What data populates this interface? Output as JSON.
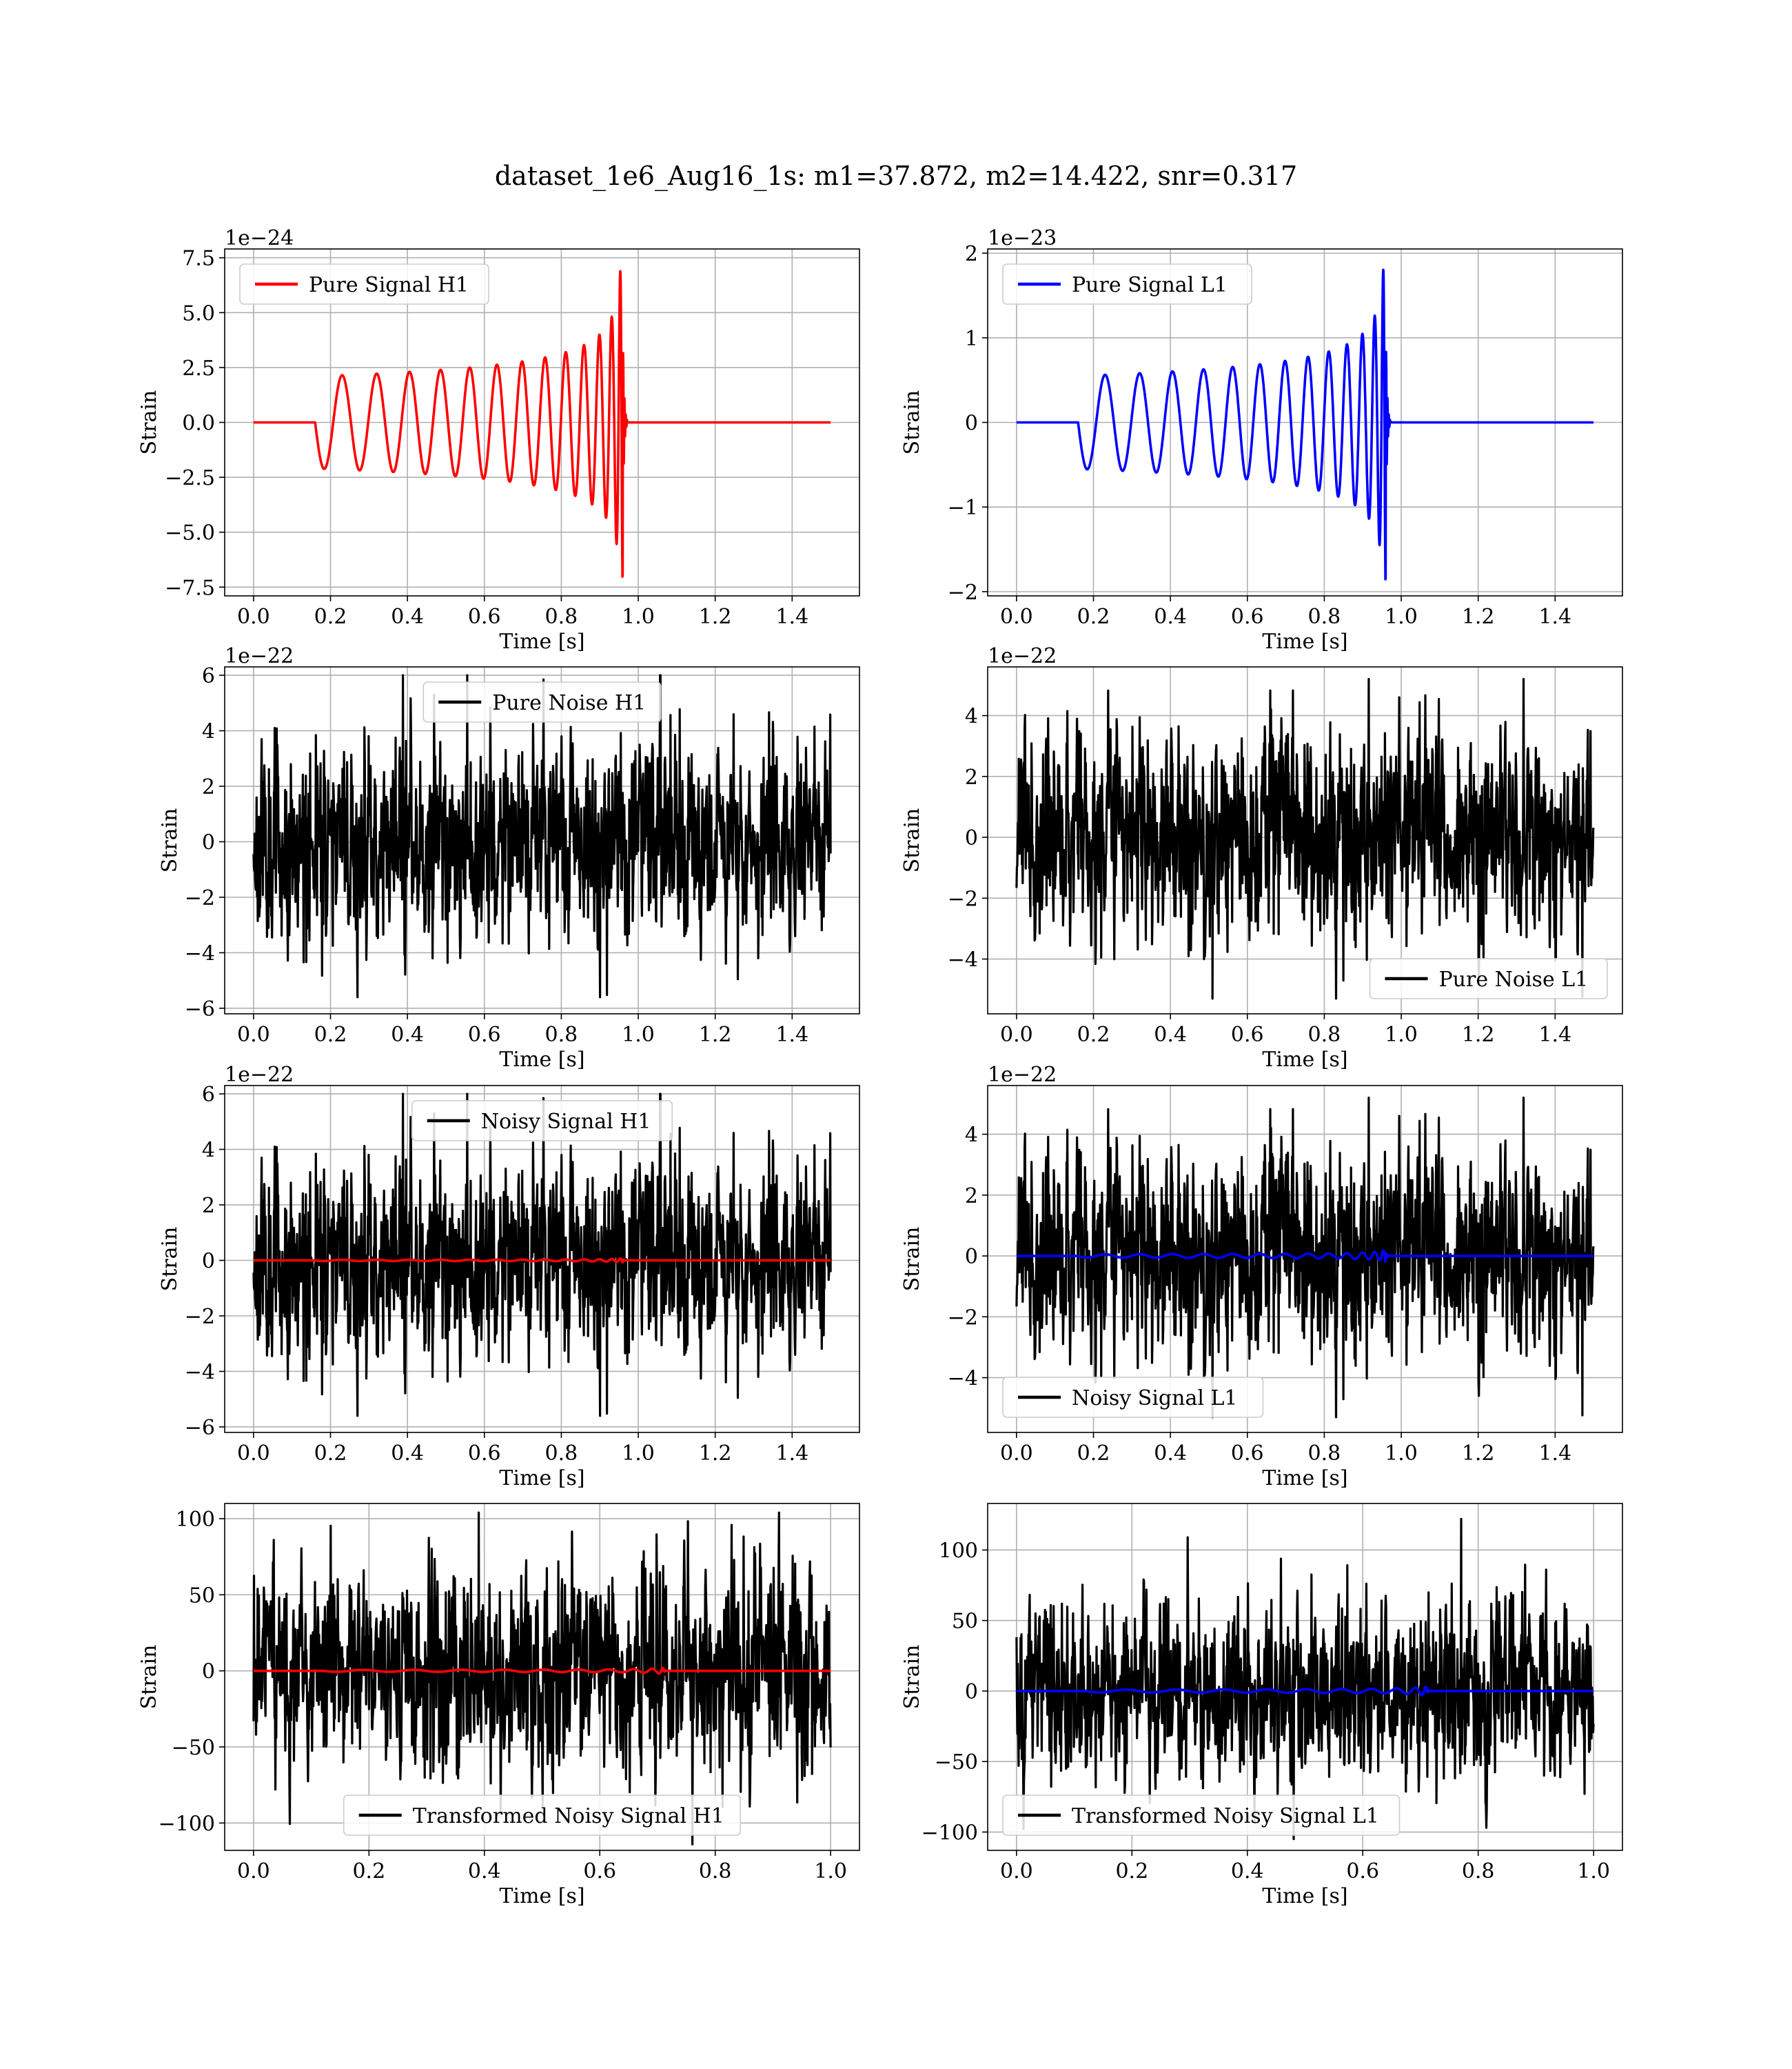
{
  "figure": {
    "title": "dataset_1e6_Aug16_1s: m1=37.872, m2=14.422, snr=0.317"
  },
  "colors": {
    "h1": "#ff0000",
    "l1": "#0000ff",
    "noise": "#000000",
    "grid": "#b0b0b0"
  },
  "chart_data": [
    {
      "id": "pure-signal-h1",
      "type": "line",
      "xlabel": "Time [s]",
      "ylabel": "Strain",
      "offset_label": "1e−24",
      "xlim": [
        -0.075,
        1.575
      ],
      "ylim": [
        -7.9,
        7.9
      ],
      "xticks": [
        0.0,
        0.2,
        0.4,
        0.6,
        0.8,
        1.0,
        1.2,
        1.4
      ],
      "xtick_labels": [
        "0.0",
        "0.2",
        "0.4",
        "0.6",
        "0.8",
        "1.0",
        "1.2",
        "1.4"
      ],
      "yticks": [
        -7.5,
        -5.0,
        -2.5,
        0.0,
        2.5,
        5.0,
        7.5
      ],
      "ytick_labels": [
        "−7.5",
        "−5.0",
        "−2.5",
        "0.0",
        "2.5",
        "5.0",
        "7.5"
      ],
      "grid": true,
      "legend": "top-left",
      "series": [
        {
          "name": "Pure Signal H1",
          "color": "#ff0000",
          "kind": "chirp",
          "t0": 0.16,
          "tc": 0.96,
          "t_end": 1.5,
          "amp_start": 2.1,
          "amp_peak": 7.2
        }
      ]
    },
    {
      "id": "pure-signal-l1",
      "type": "line",
      "xlabel": "Time [s]",
      "ylabel": "Strain",
      "offset_label": "1e−23",
      "xlim": [
        -0.075,
        1.575
      ],
      "ylim": [
        -2.05,
        2.05
      ],
      "xticks": [
        0.0,
        0.2,
        0.4,
        0.6,
        0.8,
        1.0,
        1.2,
        1.4
      ],
      "xtick_labels": [
        "0.0",
        "0.2",
        "0.4",
        "0.6",
        "0.8",
        "1.0",
        "1.2",
        "1.4"
      ],
      "yticks": [
        -2,
        -1,
        0,
        1,
        2
      ],
      "ytick_labels": [
        "−2",
        "−1",
        "0",
        "1",
        "2"
      ],
      "grid": true,
      "legend": "top-left",
      "series": [
        {
          "name": "Pure Signal L1",
          "color": "#0000ff",
          "kind": "chirp",
          "t0": 0.16,
          "tc": 0.96,
          "t_end": 1.5,
          "amp_start": 0.55,
          "amp_peak": 1.9
        }
      ]
    },
    {
      "id": "pure-noise-h1",
      "type": "line",
      "xlabel": "Time [s]",
      "ylabel": "Strain",
      "offset_label": "1e−22",
      "xlim": [
        -0.075,
        1.575
      ],
      "ylim": [
        -6.2,
        6.3
      ],
      "xticks": [
        0.0,
        0.2,
        0.4,
        0.6,
        0.8,
        1.0,
        1.2,
        1.4
      ],
      "xtick_labels": [
        "0.0",
        "0.2",
        "0.4",
        "0.6",
        "0.8",
        "1.0",
        "1.2",
        "1.4"
      ],
      "yticks": [
        -6,
        -4,
        -2,
        0,
        2,
        4,
        6
      ],
      "ytick_labels": [
        "−6",
        "−4",
        "−2",
        "0",
        "2",
        "4",
        "6"
      ],
      "grid": true,
      "legend": "top-center",
      "series": [
        {
          "name": "Pure Noise H1",
          "color": "#000000",
          "kind": "noise",
          "seed": 11,
          "t_start": 0.0,
          "t_end": 1.5,
          "n": 1500,
          "sigma": 1.6,
          "max": 6.0,
          "min": -5.6
        }
      ]
    },
    {
      "id": "pure-noise-l1",
      "type": "line",
      "xlabel": "Time [s]",
      "ylabel": "Strain",
      "offset_label": "1e−22",
      "xlim": [
        -0.075,
        1.575
      ],
      "ylim": [
        -5.8,
        5.6
      ],
      "xticks": [
        0.0,
        0.2,
        0.4,
        0.6,
        0.8,
        1.0,
        1.2,
        1.4
      ],
      "xtick_labels": [
        "0.0",
        "0.2",
        "0.4",
        "0.6",
        "0.8",
        "1.0",
        "1.2",
        "1.4"
      ],
      "yticks": [
        -4,
        -2,
        0,
        2,
        4
      ],
      "ytick_labels": [
        "−4",
        "−2",
        "0",
        "2",
        "4"
      ],
      "grid": true,
      "legend": "bottom-right",
      "series": [
        {
          "name": "Pure Noise L1",
          "color": "#000000",
          "kind": "noise",
          "seed": 23,
          "t_start": 0.0,
          "t_end": 1.5,
          "n": 1500,
          "sigma": 1.5,
          "max": 5.2,
          "min": -5.3
        }
      ]
    },
    {
      "id": "noisy-signal-h1",
      "type": "line",
      "xlabel": "Time [s]",
      "ylabel": "Strain",
      "offset_label": "1e−22",
      "xlim": [
        -0.075,
        1.575
      ],
      "ylim": [
        -6.2,
        6.3
      ],
      "xticks": [
        0.0,
        0.2,
        0.4,
        0.6,
        0.8,
        1.0,
        1.2,
        1.4
      ],
      "xtick_labels": [
        "0.0",
        "0.2",
        "0.4",
        "0.6",
        "0.8",
        "1.0",
        "1.2",
        "1.4"
      ],
      "yticks": [
        -6,
        -4,
        -2,
        0,
        2,
        4,
        6
      ],
      "ytick_labels": [
        "−6",
        "−4",
        "−2",
        "0",
        "2",
        "4",
        "6"
      ],
      "grid": true,
      "legend": "top-center",
      "series": [
        {
          "name": "Noisy Signal H1",
          "color": "#000000",
          "kind": "noise",
          "seed": 11,
          "t_start": 0.0,
          "t_end": 1.5,
          "n": 1500,
          "sigma": 1.6,
          "max": 6.0,
          "min": -5.6
        },
        {
          "color": "#ff0000",
          "kind": "chirp",
          "t0": 0.16,
          "tc": 0.96,
          "t_end": 1.5,
          "amp_start": 0.021,
          "amp_peak": 0.072
        }
      ]
    },
    {
      "id": "noisy-signal-l1",
      "type": "line",
      "xlabel": "Time [s]",
      "ylabel": "Strain",
      "offset_label": "1e−22",
      "xlim": [
        -0.075,
        1.575
      ],
      "ylim": [
        -5.8,
        5.6
      ],
      "xticks": [
        0.0,
        0.2,
        0.4,
        0.6,
        0.8,
        1.0,
        1.2,
        1.4
      ],
      "xtick_labels": [
        "0.0",
        "0.2",
        "0.4",
        "0.6",
        "0.8",
        "1.0",
        "1.2",
        "1.4"
      ],
      "yticks": [
        -4,
        -2,
        0,
        2,
        4
      ],
      "ytick_labels": [
        "−4",
        "−2",
        "0",
        "2",
        "4"
      ],
      "grid": true,
      "legend": "bottom-left",
      "series": [
        {
          "name": "Noisy Signal L1",
          "color": "#000000",
          "kind": "noise",
          "seed": 23,
          "t_start": 0.0,
          "t_end": 1.5,
          "n": 1500,
          "sigma": 1.5,
          "max": 5.2,
          "min": -5.3
        },
        {
          "color": "#0000ff",
          "kind": "chirp",
          "t0": 0.16,
          "tc": 0.96,
          "t_end": 1.5,
          "amp_start": 0.055,
          "amp_peak": 0.19
        }
      ]
    },
    {
      "id": "transformed-noisy-signal-h1",
      "type": "line",
      "xlabel": "Time [s]",
      "ylabel": "Strain",
      "offset_label": "",
      "xlim": [
        -0.05,
        1.05
      ],
      "ylim": [
        -118,
        110
      ],
      "xticks": [
        0.0,
        0.2,
        0.4,
        0.6,
        0.8,
        1.0
      ],
      "xtick_labels": [
        "0.0",
        "0.2",
        "0.4",
        "0.6",
        "0.8",
        "1.0"
      ],
      "yticks": [
        -100,
        -50,
        0,
        50,
        100
      ],
      "ytick_labels": [
        "−100",
        "−50",
        "0",
        "50",
        "100"
      ],
      "grid": true,
      "legend": "bottom-center",
      "series": [
        {
          "name": "Transformed Noisy Signal H1",
          "color": "#000000",
          "kind": "noise",
          "seed": 37,
          "t_start": 0.0,
          "t_end": 1.0,
          "n": 1400,
          "sigma": 30,
          "max": 104,
          "min": -114
        },
        {
          "color": "#ff0000",
          "kind": "chirp",
          "t0": 0.12,
          "tc": 0.71,
          "t_end": 1.0,
          "amp_start": 0.6,
          "amp_peak": 2.0
        }
      ]
    },
    {
      "id": "transformed-noisy-signal-l1",
      "type": "line",
      "xlabel": "Time [s]",
      "ylabel": "Strain",
      "offset_label": "",
      "xlim": [
        -0.05,
        1.05
      ],
      "ylim": [
        -113,
        133
      ],
      "xticks": [
        0.0,
        0.2,
        0.4,
        0.6,
        0.8,
        1.0
      ],
      "xtick_labels": [
        "0.0",
        "0.2",
        "0.4",
        "0.6",
        "0.8",
        "1.0"
      ],
      "yticks": [
        -100,
        -50,
        0,
        50,
        100
      ],
      "ytick_labels": [
        "−100",
        "−50",
        "0",
        "50",
        "100"
      ],
      "grid": true,
      "legend": "bottom-left",
      "series": [
        {
          "name": "Transformed Noisy Signal L1",
          "color": "#000000",
          "kind": "noise",
          "seed": 51,
          "t_start": 0.0,
          "t_end": 1.0,
          "n": 1400,
          "sigma": 28,
          "max": 122,
          "min": -105
        },
        {
          "color": "#0000ff",
          "kind": "chirp",
          "t0": 0.12,
          "tc": 0.71,
          "t_end": 1.0,
          "amp_start": 1.0,
          "amp_peak": 3.2
        }
      ]
    }
  ]
}
